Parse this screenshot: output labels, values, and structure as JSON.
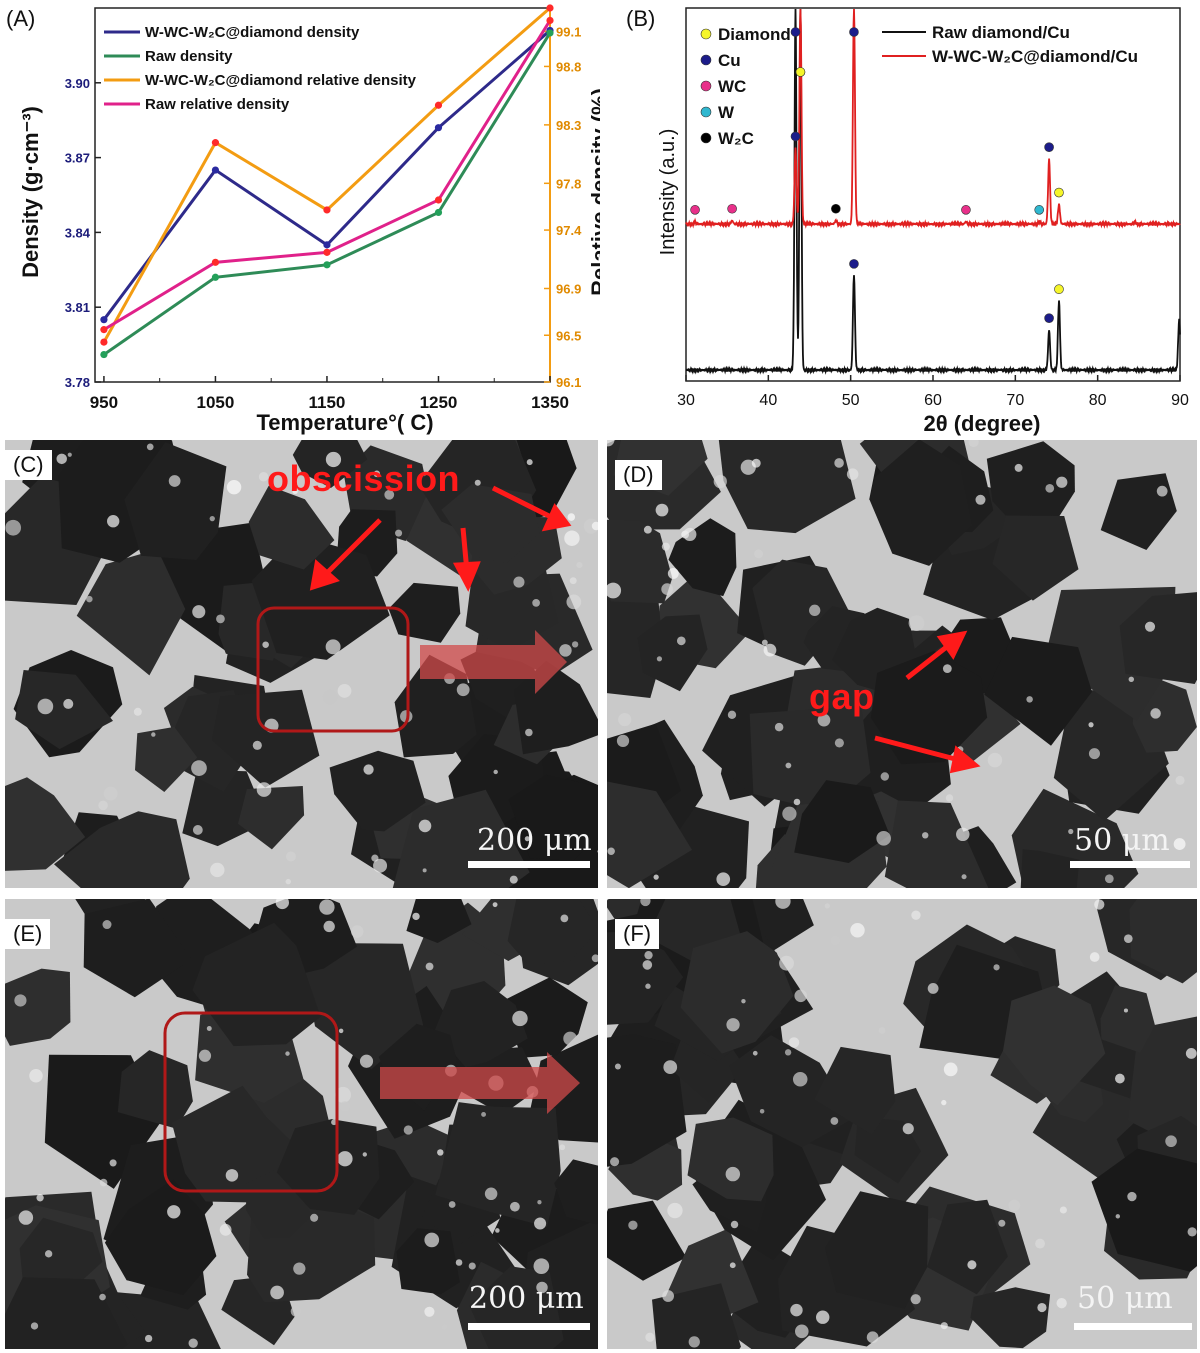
{
  "panels": {
    "a": "(A)",
    "b": "(B)",
    "c": "(C)",
    "d": "(D)",
    "e": "(E)",
    "f": "(F)"
  },
  "chart_data": [
    {
      "type": "line",
      "panel": "A",
      "xlabel": "Temperature°( C)",
      "ylabel_left": "Density (g·cm⁻³)",
      "ylabel_right": "Relative density (%)",
      "x": [
        950,
        1050,
        1150,
        1250,
        1350
      ],
      "xlim": [
        942,
        1350
      ],
      "ylim_left": [
        3.78,
        3.93
      ],
      "ylim_right": [
        96.1,
        99.3
      ],
      "x_ticks": [
        "950",
        "1050",
        "1150",
        "1250",
        "1350"
      ],
      "y_ticks_left": [
        "3.78",
        "3.81",
        "3.84",
        "3.87",
        "3.90"
      ],
      "y_ticks_right": [
        "96.1",
        "96.5",
        "96.9",
        "97.4",
        "97.8",
        "98.3",
        "98.8",
        "99.1"
      ],
      "series": [
        {
          "name": "W-WC-W₂C@diamond density",
          "axis": "left",
          "color": "#2e2a8a",
          "values": [
            3.805,
            3.865,
            3.835,
            3.882,
            3.921
          ]
        },
        {
          "name": "Raw density",
          "axis": "left",
          "color": "#2e8b57",
          "values": [
            3.791,
            3.822,
            3.827,
            3.848,
            3.92
          ]
        },
        {
          "name": "W-WC-W₂C@diamond relative density",
          "axis": "left",
          "color": "#f39c12",
          "values": [
            3.796,
            3.876,
            3.849,
            3.891,
            3.93
          ]
        },
        {
          "name": "Raw relative density",
          "axis": "left",
          "color": "#e0218a",
          "values": [
            3.801,
            3.828,
            3.832,
            3.853,
            3.925
          ]
        }
      ],
      "legend_position": "top-left"
    },
    {
      "type": "line",
      "panel": "B",
      "xlabel": "2θ (degree)",
      "ylabel": "Intensity (a.u.)",
      "xlim": [
        30,
        90
      ],
      "x_ticks": [
        "30",
        "40",
        "50",
        "60",
        "70",
        "80",
        "90"
      ],
      "series": [
        {
          "name": "Raw diamond/Cu",
          "color": "#111111",
          "peaks": [
            [
              43.3,
              1.0
            ],
            [
              43.9,
              1.0
            ],
            [
              50.4,
              0.26
            ],
            [
              74.1,
              0.11
            ],
            [
              75.3,
              0.19
            ],
            [
              89.9,
              0.14
            ]
          ]
        },
        {
          "name": "W-WC-W₂C@diamond/Cu",
          "color": "#e02020",
          "peaks": [
            [
              31.1,
              0.01
            ],
            [
              35.6,
              0.015
            ],
            [
              43.3,
              0.35
            ],
            [
              43.9,
              1.0
            ],
            [
              48.2,
              0.015
            ],
            [
              50.4,
              1.0
            ],
            [
              64.0,
              0.01
            ],
            [
              72.9,
              0.01
            ],
            [
              74.1,
              0.3
            ],
            [
              75.3,
              0.09
            ],
            [
              84.5,
              0.008
            ]
          ]
        }
      ],
      "phase_legend": [
        {
          "label": "Diamond",
          "color": "#f5f52a"
        },
        {
          "label": "Cu",
          "color": "#1c1c8a"
        },
        {
          "label": "WC",
          "color": "#e8308a"
        },
        {
          "label": "W",
          "color": "#30b8d0"
        },
        {
          "label": "W₂C",
          "color": "#000000"
        }
      ],
      "phase_markers": [
        {
          "series": 1,
          "x": 31.1,
          "phase": "WC"
        },
        {
          "series": 1,
          "x": 35.6,
          "phase": "WC"
        },
        {
          "series": 1,
          "x": 43.3,
          "phase": "Cu"
        },
        {
          "series": 1,
          "x": 43.9,
          "phase": "Diamond"
        },
        {
          "series": 1,
          "x": 48.2,
          "phase": "W₂C"
        },
        {
          "series": 1,
          "x": 50.4,
          "phase": "Cu"
        },
        {
          "series": 1,
          "x": 64.0,
          "phase": "WC"
        },
        {
          "series": 1,
          "x": 72.9,
          "phase": "W"
        },
        {
          "series": 1,
          "x": 74.1,
          "phase": "Cu"
        },
        {
          "series": 1,
          "x": 75.3,
          "phase": "Diamond"
        },
        {
          "series": 0,
          "x": 43.3,
          "phase": "Cu"
        },
        {
          "series": 0,
          "x": 43.9,
          "phase": "Diamond"
        },
        {
          "series": 0,
          "x": 50.4,
          "phase": "Cu"
        },
        {
          "series": 0,
          "x": 74.1,
          "phase": "Cu"
        },
        {
          "series": 0,
          "x": 75.3,
          "phase": "Diamond"
        }
      ],
      "legend_position": "top-right"
    }
  ],
  "sem_images": {
    "c": {
      "annotation": "obscission",
      "scale_bar": "200 μm"
    },
    "d": {
      "annotation": "gap",
      "scale_bar": "50 μm"
    },
    "e": {
      "scale_bar": "200 μm"
    },
    "f": {
      "scale_bar": "50 μm"
    }
  }
}
